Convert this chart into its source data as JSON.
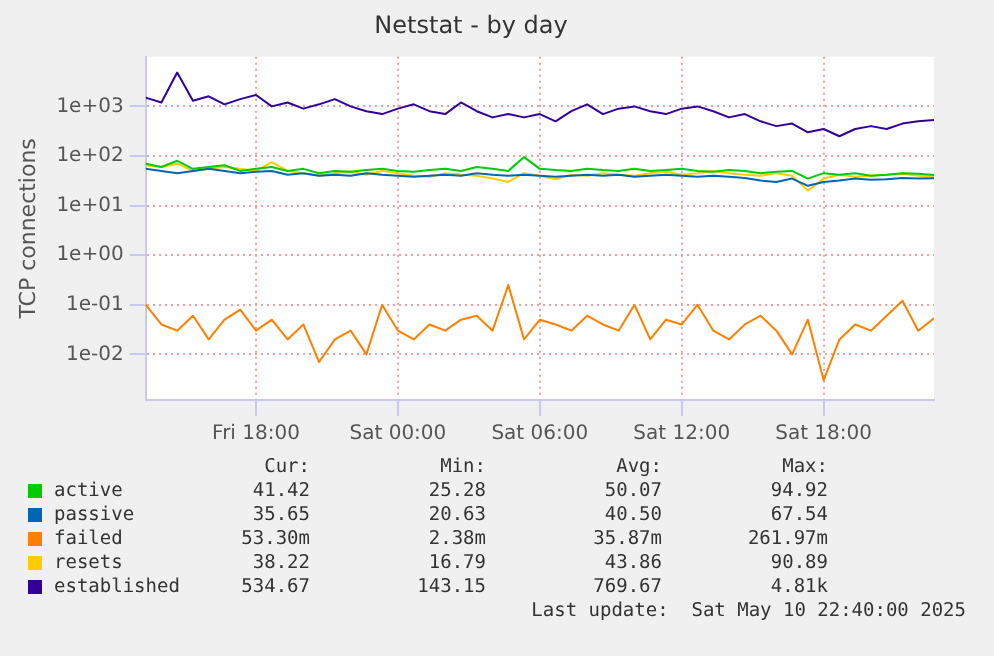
{
  "chart_data": {
    "type": "line",
    "title": "Netstat - by day",
    "ylabel": "TCP connections",
    "log": "y",
    "grid": true,
    "legend": "bottom",
    "marker": "none",
    "line_style": "solid",
    "xlim": [
      "2025-05-09T13:20",
      "2025-05-10T22:40"
    ],
    "xticks": [
      {
        "value": "2025-05-09T18:00",
        "label": "Fri 18:00"
      },
      {
        "value": "2025-05-10T00:00",
        "label": "Sat 00:00"
      },
      {
        "value": "2025-05-10T06:00",
        "label": "Sat 06:00"
      },
      {
        "value": "2025-05-10T12:00",
        "label": "Sat 12:00"
      },
      {
        "value": "2025-05-10T18:00",
        "label": "Sat 18:00"
      }
    ],
    "ylim": [
      0.0012,
      10000
    ],
    "yticks": [
      {
        "value": 0.01,
        "label": "1e-02"
      },
      {
        "value": 0.1,
        "label": "1e-01"
      },
      {
        "value": 1,
        "label": "1e+00"
      },
      {
        "value": 10,
        "label": "1e+01"
      },
      {
        "value": 100,
        "label": "1e+02"
      },
      {
        "value": 1000,
        "label": "1e+03"
      }
    ],
    "x": [
      "2025-05-09T13:20",
      "2025-05-09T14:00",
      "2025-05-09T14:40",
      "2025-05-09T15:20",
      "2025-05-09T16:00",
      "2025-05-09T16:40",
      "2025-05-09T17:20",
      "2025-05-09T18:00",
      "2025-05-09T18:40",
      "2025-05-09T19:20",
      "2025-05-09T20:00",
      "2025-05-09T20:40",
      "2025-05-09T21:20",
      "2025-05-09T22:00",
      "2025-05-09T22:40",
      "2025-05-09T23:20",
      "2025-05-10T00:00",
      "2025-05-10T00:40",
      "2025-05-10T01:20",
      "2025-05-10T02:00",
      "2025-05-10T02:40",
      "2025-05-10T03:20",
      "2025-05-10T04:00",
      "2025-05-10T04:40",
      "2025-05-10T05:20",
      "2025-05-10T06:00",
      "2025-05-10T06:40",
      "2025-05-10T07:20",
      "2025-05-10T08:00",
      "2025-05-10T08:40",
      "2025-05-10T09:20",
      "2025-05-10T10:00",
      "2025-05-10T10:40",
      "2025-05-10T11:20",
      "2025-05-10T12:00",
      "2025-05-10T12:40",
      "2025-05-10T13:20",
      "2025-05-10T14:00",
      "2025-05-10T14:40",
      "2025-05-10T15:20",
      "2025-05-10T16:00",
      "2025-05-10T16:40",
      "2025-05-10T17:20",
      "2025-05-10T18:00",
      "2025-05-10T18:40",
      "2025-05-10T19:20",
      "2025-05-10T20:00",
      "2025-05-10T20:40",
      "2025-05-10T21:20",
      "2025-05-10T22:00",
      "2025-05-10T22:40"
    ],
    "series": [
      {
        "name": "active",
        "color": "#00cc00",
        "values": [
          70,
          60,
          80,
          55,
          60,
          65,
          50,
          55,
          60,
          50,
          55,
          45,
          50,
          48,
          52,
          55,
          50,
          48,
          52,
          55,
          50,
          60,
          55,
          50,
          95,
          55,
          52,
          50,
          55,
          52,
          50,
          55,
          50,
          52,
          55,
          50,
          48,
          52,
          50,
          45,
          48,
          50,
          35,
          45,
          42,
          45,
          40,
          42,
          45,
          44,
          41.42
        ]
      },
      {
        "name": "passive",
        "color": "#0066b3",
        "values": [
          55,
          50,
          45,
          50,
          55,
          50,
          45,
          48,
          50,
          42,
          45,
          40,
          42,
          40,
          45,
          42,
          40,
          38,
          40,
          42,
          40,
          45,
          42,
          40,
          42,
          40,
          38,
          40,
          42,
          40,
          42,
          38,
          40,
          42,
          40,
          38,
          40,
          38,
          36,
          32,
          30,
          35,
          25,
          30,
          32,
          35,
          33,
          34,
          36,
          35,
          35.65
        ]
      },
      {
        "name": "failed",
        "color": "#ff8000",
        "values": [
          0.1,
          0.04,
          0.03,
          0.06,
          0.02,
          0.05,
          0.08,
          0.03,
          0.05,
          0.02,
          0.04,
          0.007,
          0.02,
          0.03,
          0.01,
          0.1,
          0.03,
          0.02,
          0.04,
          0.03,
          0.05,
          0.06,
          0.03,
          0.25,
          0.02,
          0.05,
          0.04,
          0.03,
          0.06,
          0.04,
          0.03,
          0.1,
          0.02,
          0.05,
          0.04,
          0.1,
          0.03,
          0.02,
          0.04,
          0.06,
          0.03,
          0.01,
          0.05,
          0.003,
          0.02,
          0.04,
          0.03,
          0.06,
          0.12,
          0.03,
          0.0533
        ]
      },
      {
        "name": "resets",
        "color": "#ffcc00",
        "values": [
          65,
          60,
          70,
          50,
          55,
          60,
          55,
          50,
          75,
          50,
          45,
          40,
          45,
          48,
          42,
          50,
          45,
          40,
          38,
          45,
          42,
          40,
          35,
          30,
          45,
          40,
          34,
          42,
          40,
          45,
          42,
          40,
          45,
          48,
          42,
          45,
          50,
          45,
          42,
          40,
          45,
          40,
          20,
          35,
          42,
          38,
          40,
          42,
          44,
          40,
          38.22
        ]
      },
      {
        "name": "established",
        "color": "#330099",
        "values": [
          1500,
          1200,
          4810,
          1300,
          1600,
          1100,
          1400,
          1700,
          1000,
          1200,
          900,
          1100,
          1400,
          1000,
          800,
          700,
          900,
          1100,
          800,
          700,
          1200,
          800,
          600,
          700,
          600,
          700,
          500,
          800,
          1100,
          700,
          900,
          1000,
          800,
          700,
          900,
          1000,
          800,
          600,
          700,
          500,
          400,
          450,
          300,
          350,
          250,
          350,
          400,
          350,
          450,
          500,
          534.67
        ]
      }
    ],
    "annotations": [
      "Cur:\tMin:\tAvg:\tMax:",
      "41.42\t25.28\t50.07\t94.92",
      "35.65\t20.63\t40.50\t67.54",
      "53.30m\t2.38m\t35.87m\t261.97m",
      "38.22\t16.79\t43.86\t90.89",
      "534.67\t143.15\t769.67\t4.81k",
      "Last update:  Sat May 10 22:40:00 2025"
    ]
  }
}
